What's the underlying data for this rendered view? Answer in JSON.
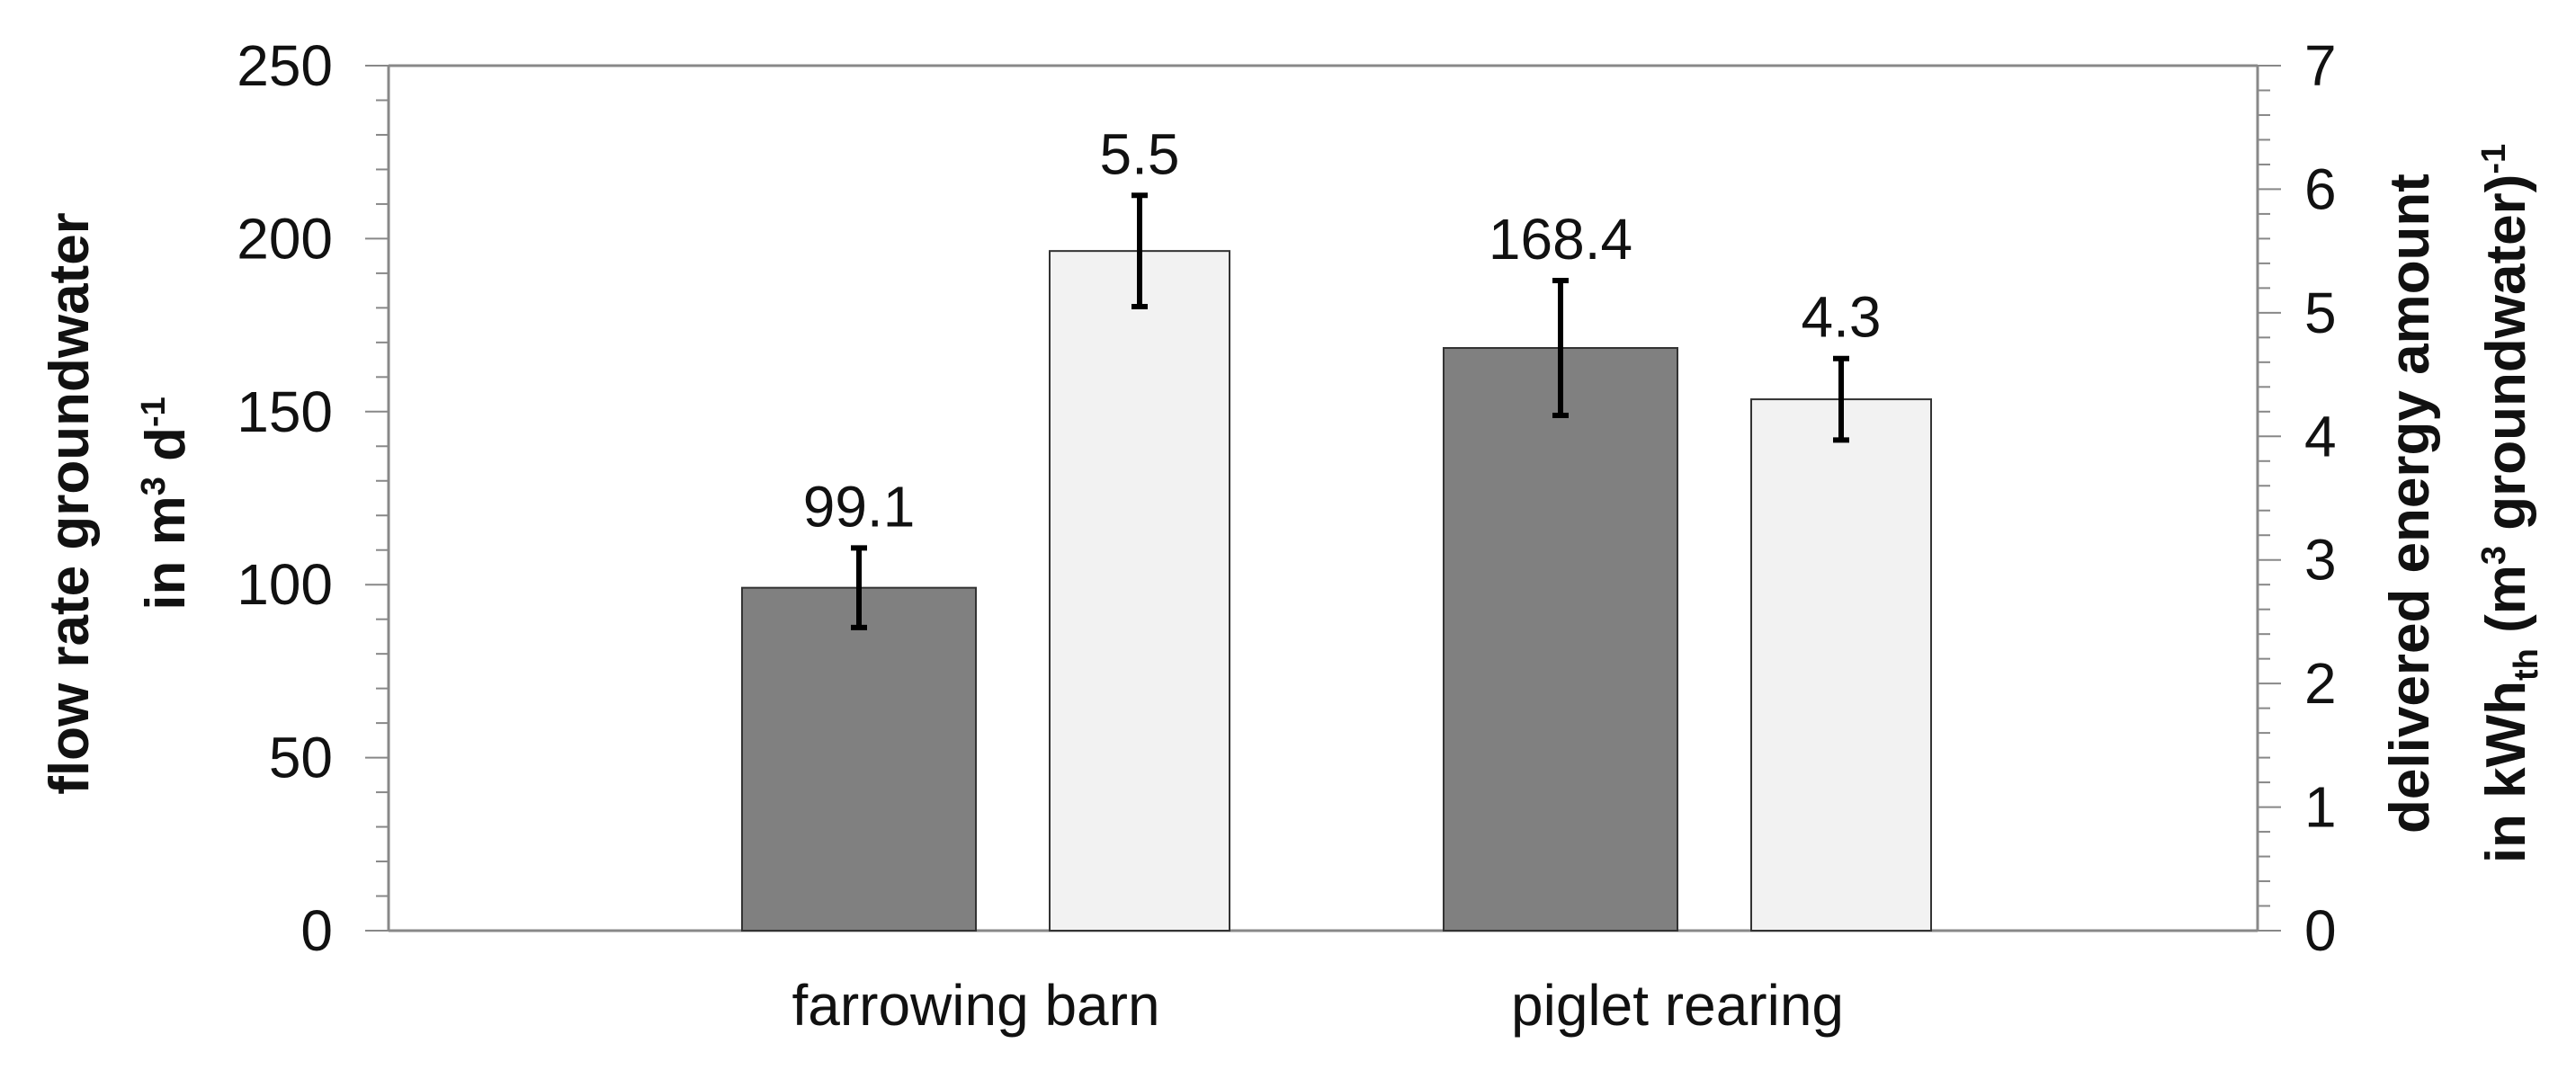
{
  "chart_data": {
    "type": "bar",
    "categories": [
      "farrowing barn",
      "piglet rearing"
    ],
    "series": [
      {
        "axis": "left",
        "color": "#808080",
        "values": [
          99.1,
          168.4
        ],
        "error": [
          11.5,
          19.5
        ],
        "data_labels": [
          "99.1",
          "168.4"
        ]
      },
      {
        "axis": "right",
        "color": "#f2f2f2",
        "values": [
          5.5,
          4.3
        ],
        "error": [
          0.45,
          0.33
        ],
        "data_labels": [
          "5.5",
          "4.3"
        ]
      }
    ],
    "y_left": {
      "title_main": "flow rate groundwater",
      "title_line2": {
        "a": "in m",
        "sup1": "3",
        "b": " d",
        "sup2": "-1"
      },
      "range": [
        0,
        250
      ],
      "ticks": [
        "0",
        "50",
        "100",
        "150",
        "200",
        "250"
      ]
    },
    "y_right": {
      "title_main": "delivered energy amount",
      "title_line2": {
        "a": "in kWh",
        "sub": "th",
        "b": " (m",
        "sup1": "3",
        "c": " groundwater)",
        "sup2": "-1"
      },
      "range": [
        0,
        7
      ],
      "ticks": [
        "0",
        "1",
        "2",
        "3",
        "4",
        "5",
        "6",
        "7"
      ]
    },
    "grid": false,
    "legend": "none"
  }
}
